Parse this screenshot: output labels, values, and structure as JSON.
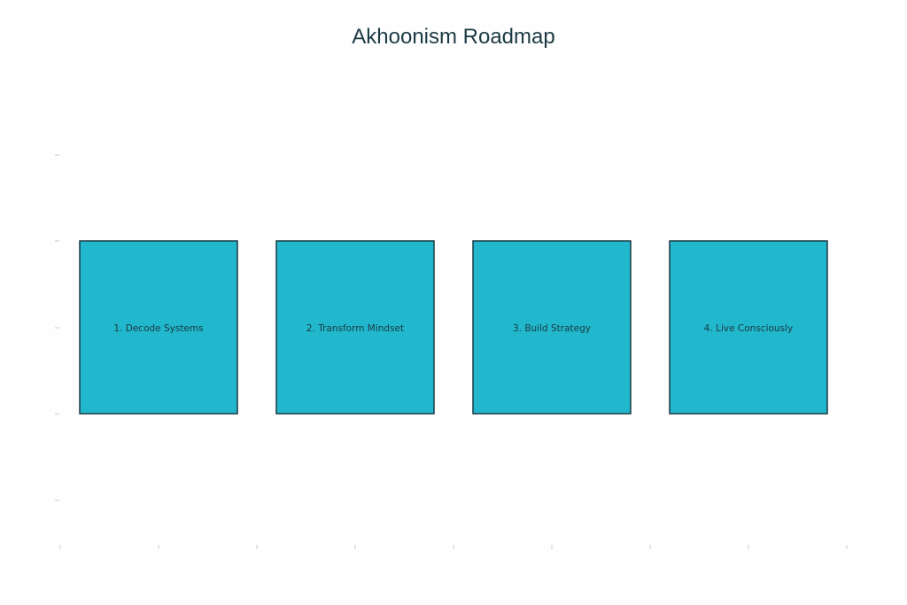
{
  "title": "Akhoonism Roadmap",
  "colors": {
    "box_fill": "#21b7cc",
    "box_stroke": "#1b3a43",
    "text": "#1b3a43",
    "tick": "#cccccc"
  },
  "steps": [
    {
      "label": "1. Decode Systems"
    },
    {
      "label": "2. Transform Mindset"
    },
    {
      "label": "3. Build Strategy"
    },
    {
      "label": "4. Live Consciously"
    }
  ]
}
